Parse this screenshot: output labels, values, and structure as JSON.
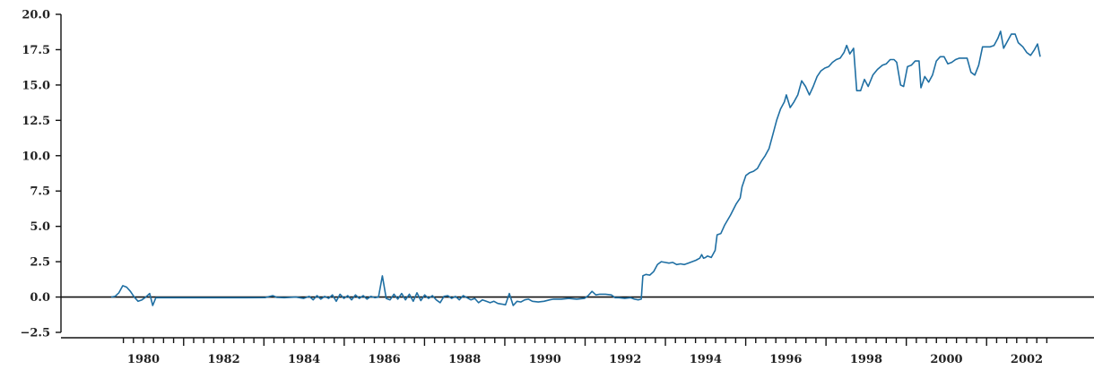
{
  "chart_data": {
    "type": "line",
    "title": "",
    "xlabel": "",
    "ylabel": "",
    "xlim": [
      1979.0,
      2003.5
    ],
    "ylim": [
      -2.5,
      20.0
    ],
    "y_ticks": [
      {
        "value": -2.5,
        "label": "−2.5"
      },
      {
        "value": 0.0,
        "label": "0.0"
      },
      {
        "value": 2.5,
        "label": "2.5"
      },
      {
        "value": 5.0,
        "label": "5.0"
      },
      {
        "value": 7.5,
        "label": "7.5"
      },
      {
        "value": 10.0,
        "label": "10.0"
      },
      {
        "value": 12.5,
        "label": "12.5"
      },
      {
        "value": 15.0,
        "label": "15.0"
      },
      {
        "value": 17.5,
        "label": "17.5"
      },
      {
        "value": 20.0,
        "label": "20.0"
      }
    ],
    "x_ticks": [
      {
        "value": 1980,
        "label": "1980"
      },
      {
        "value": 1982,
        "label": "1982"
      },
      {
        "value": 1984,
        "label": "1984"
      },
      {
        "value": 1986,
        "label": "1986"
      },
      {
        "value": 1988,
        "label": "1988"
      },
      {
        "value": 1990,
        "label": "1990"
      },
      {
        "value": 1992,
        "label": "1992"
      },
      {
        "value": 1994,
        "label": "1994"
      },
      {
        "value": 1996,
        "label": "1996"
      },
      {
        "value": 1998,
        "label": "1998"
      },
      {
        "value": 2000,
        "label": "2000"
      },
      {
        "value": 2002,
        "label": "2002"
      }
    ],
    "x_minor_ticks_from": 1979.5,
    "x_minor_ticks_to": 2002.5,
    "x_minor_step": 0.25,
    "zero_line": 0.0,
    "grid": false,
    "legend": "none",
    "series": [
      {
        "color": "#1f6fa3",
        "points": [
          [
            1979.5,
            0.0
          ],
          [
            1979.6,
            0.05
          ],
          [
            1979.7,
            0.3
          ],
          [
            1979.8,
            0.8
          ],
          [
            1979.9,
            0.7
          ],
          [
            1980.0,
            0.4
          ],
          [
            1980.1,
            0.0
          ],
          [
            1980.2,
            -0.3
          ],
          [
            1980.3,
            -0.2
          ],
          [
            1980.4,
            0.0
          ],
          [
            1980.5,
            0.25
          ],
          [
            1980.58,
            -0.6
          ],
          [
            1980.66,
            -0.05
          ],
          [
            1981.0,
            -0.05
          ],
          [
            1981.5,
            -0.05
          ],
          [
            1982.0,
            -0.05
          ],
          [
            1982.5,
            -0.05
          ],
          [
            1983.0,
            -0.05
          ],
          [
            1983.5,
            -0.04
          ],
          [
            1983.7,
            0.1
          ],
          [
            1983.8,
            -0.02
          ],
          [
            1984.0,
            -0.05
          ],
          [
            1984.3,
            0.0
          ],
          [
            1984.5,
            -0.1
          ],
          [
            1984.65,
            0.05
          ],
          [
            1984.75,
            -0.2
          ],
          [
            1984.85,
            0.1
          ],
          [
            1984.95,
            -0.15
          ],
          [
            1985.05,
            0.05
          ],
          [
            1985.15,
            -0.1
          ],
          [
            1985.25,
            0.15
          ],
          [
            1985.35,
            -0.3
          ],
          [
            1985.45,
            0.2
          ],
          [
            1985.55,
            -0.1
          ],
          [
            1985.65,
            0.1
          ],
          [
            1985.75,
            -0.2
          ],
          [
            1985.85,
            0.15
          ],
          [
            1985.95,
            -0.1
          ],
          [
            1986.05,
            0.1
          ],
          [
            1986.15,
            -0.15
          ],
          [
            1986.25,
            0.05
          ],
          [
            1986.35,
            -0.05
          ],
          [
            1986.45,
            0.0
          ],
          [
            1986.55,
            1.5
          ],
          [
            1986.65,
            -0.1
          ],
          [
            1986.75,
            -0.2
          ],
          [
            1986.85,
            0.2
          ],
          [
            1986.95,
            -0.15
          ],
          [
            1987.05,
            0.25
          ],
          [
            1987.15,
            -0.2
          ],
          [
            1987.25,
            0.2
          ],
          [
            1987.35,
            -0.3
          ],
          [
            1987.45,
            0.3
          ],
          [
            1987.55,
            -0.25
          ],
          [
            1987.65,
            0.15
          ],
          [
            1987.75,
            -0.1
          ],
          [
            1987.85,
            0.1
          ],
          [
            1987.95,
            -0.2
          ],
          [
            1988.05,
            -0.4
          ],
          [
            1988.15,
            0.05
          ],
          [
            1988.25,
            0.1
          ],
          [
            1988.35,
            -0.1
          ],
          [
            1988.45,
            0.05
          ],
          [
            1988.55,
            -0.2
          ],
          [
            1988.65,
            0.1
          ],
          [
            1988.75,
            -0.05
          ],
          [
            1988.85,
            -0.2
          ],
          [
            1988.95,
            -0.1
          ],
          [
            1989.05,
            -0.4
          ],
          [
            1989.15,
            -0.2
          ],
          [
            1989.25,
            -0.3
          ],
          [
            1989.35,
            -0.4
          ],
          [
            1989.45,
            -0.3
          ],
          [
            1989.55,
            -0.45
          ],
          [
            1989.65,
            -0.5
          ],
          [
            1989.75,
            -0.55
          ],
          [
            1989.85,
            0.25
          ],
          [
            1989.95,
            -0.6
          ],
          [
            1990.05,
            -0.3
          ],
          [
            1990.15,
            -0.35
          ],
          [
            1990.25,
            -0.2
          ],
          [
            1990.35,
            -0.15
          ],
          [
            1990.45,
            -0.3
          ],
          [
            1990.6,
            -0.35
          ],
          [
            1990.75,
            -0.3
          ],
          [
            1990.9,
            -0.2
          ],
          [
            1991.0,
            -0.15
          ],
          [
            1991.2,
            -0.15
          ],
          [
            1991.4,
            -0.1
          ],
          [
            1991.6,
            -0.15
          ],
          [
            1991.8,
            -0.1
          ],
          [
            1991.9,
            0.1
          ],
          [
            1992.0,
            0.4
          ],
          [
            1992.1,
            0.15
          ],
          [
            1992.2,
            0.2
          ],
          [
            1992.35,
            0.2
          ],
          [
            1992.5,
            0.15
          ],
          [
            1992.6,
            -0.05
          ],
          [
            1992.7,
            -0.05
          ],
          [
            1992.85,
            -0.1
          ],
          [
            1993.0,
            -0.05
          ],
          [
            1993.1,
            -0.15
          ],
          [
            1993.2,
            -0.2
          ],
          [
            1993.28,
            -0.15
          ],
          [
            1993.32,
            1.5
          ],
          [
            1993.4,
            1.6
          ],
          [
            1993.5,
            1.55
          ],
          [
            1993.6,
            1.8
          ],
          [
            1993.7,
            2.3
          ],
          [
            1993.8,
            2.5
          ],
          [
            1993.9,
            2.45
          ],
          [
            1994.0,
            2.4
          ],
          [
            1994.1,
            2.45
          ],
          [
            1994.2,
            2.3
          ],
          [
            1994.3,
            2.35
          ],
          [
            1994.4,
            2.3
          ],
          [
            1994.5,
            2.4
          ],
          [
            1994.6,
            2.5
          ],
          [
            1994.7,
            2.6
          ],
          [
            1994.8,
            2.75
          ],
          [
            1994.85,
            3.0
          ],
          [
            1994.9,
            2.75
          ],
          [
            1994.95,
            2.8
          ],
          [
            1995.0,
            2.9
          ],
          [
            1995.1,
            2.8
          ],
          [
            1995.2,
            3.3
          ],
          [
            1995.25,
            4.4
          ],
          [
            1995.35,
            4.5
          ],
          [
            1995.45,
            5.1
          ],
          [
            1995.6,
            5.8
          ],
          [
            1995.75,
            6.6
          ],
          [
            1995.85,
            7.0
          ],
          [
            1995.9,
            7.8
          ],
          [
            1996.0,
            8.6
          ],
          [
            1996.1,
            8.8
          ],
          [
            1996.2,
            8.9
          ],
          [
            1996.3,
            9.1
          ],
          [
            1996.4,
            9.6
          ],
          [
            1996.5,
            10.0
          ],
          [
            1996.6,
            10.5
          ],
          [
            1996.7,
            11.5
          ],
          [
            1996.8,
            12.5
          ],
          [
            1996.9,
            13.3
          ],
          [
            1997.0,
            13.8
          ],
          [
            1997.05,
            14.3
          ],
          [
            1997.15,
            13.4
          ],
          [
            1997.25,
            13.8
          ],
          [
            1997.35,
            14.3
          ],
          [
            1997.45,
            15.3
          ],
          [
            1997.55,
            14.9
          ],
          [
            1997.65,
            14.3
          ],
          [
            1997.75,
            14.9
          ],
          [
            1997.85,
            15.6
          ],
          [
            1997.95,
            16.0
          ],
          [
            1998.05,
            16.2
          ],
          [
            1998.15,
            16.3
          ],
          [
            1998.25,
            16.6
          ],
          [
            1998.35,
            16.8
          ],
          [
            1998.45,
            16.9
          ],
          [
            1998.55,
            17.3
          ],
          [
            1998.62,
            17.8
          ],
          [
            1998.7,
            17.2
          ],
          [
            1998.8,
            17.6
          ],
          [
            1998.88,
            14.6
          ],
          [
            1998.98,
            14.6
          ],
          [
            1999.08,
            15.4
          ],
          [
            1999.18,
            14.9
          ],
          [
            1999.3,
            15.7
          ],
          [
            1999.42,
            16.1
          ],
          [
            1999.55,
            16.4
          ],
          [
            1999.65,
            16.5
          ],
          [
            1999.75,
            16.8
          ],
          [
            1999.85,
            16.8
          ],
          [
            1999.92,
            16.6
          ],
          [
            2000.02,
            15.0
          ],
          [
            2000.1,
            14.9
          ],
          [
            2000.2,
            16.3
          ],
          [
            2000.3,
            16.4
          ],
          [
            2000.4,
            16.7
          ],
          [
            2000.5,
            16.7
          ],
          [
            2000.55,
            14.8
          ],
          [
            2000.65,
            15.6
          ],
          [
            2000.75,
            15.2
          ],
          [
            2000.85,
            15.7
          ],
          [
            2000.95,
            16.7
          ],
          [
            2001.05,
            17.0
          ],
          [
            2001.15,
            17.0
          ],
          [
            2001.25,
            16.5
          ],
          [
            2001.35,
            16.6
          ],
          [
            2001.45,
            16.8
          ],
          [
            2001.55,
            16.9
          ],
          [
            2001.65,
            16.9
          ],
          [
            2001.75,
            16.9
          ],
          [
            2001.85,
            15.9
          ],
          [
            2001.95,
            15.7
          ],
          [
            2002.05,
            16.4
          ],
          [
            2002.15,
            17.7
          ],
          [
            2002.25,
            17.7
          ],
          [
            2002.35,
            17.7
          ],
          [
            2002.45,
            17.8
          ],
          [
            2002.55,
            18.3
          ],
          [
            2002.62,
            18.8
          ],
          [
            2002.7,
            17.6
          ],
          [
            2002.8,
            18.1
          ],
          [
            2002.9,
            18.6
          ],
          [
            2003.0,
            18.6
          ],
          [
            2003.08,
            18.0
          ],
          [
            2003.2,
            17.7
          ],
          [
            2003.3,
            17.3
          ],
          [
            2003.4,
            17.1
          ],
          [
            2003.5,
            17.5
          ],
          [
            2003.58,
            17.9
          ],
          [
            2003.65,
            17.0
          ]
        ]
      }
    ]
  }
}
